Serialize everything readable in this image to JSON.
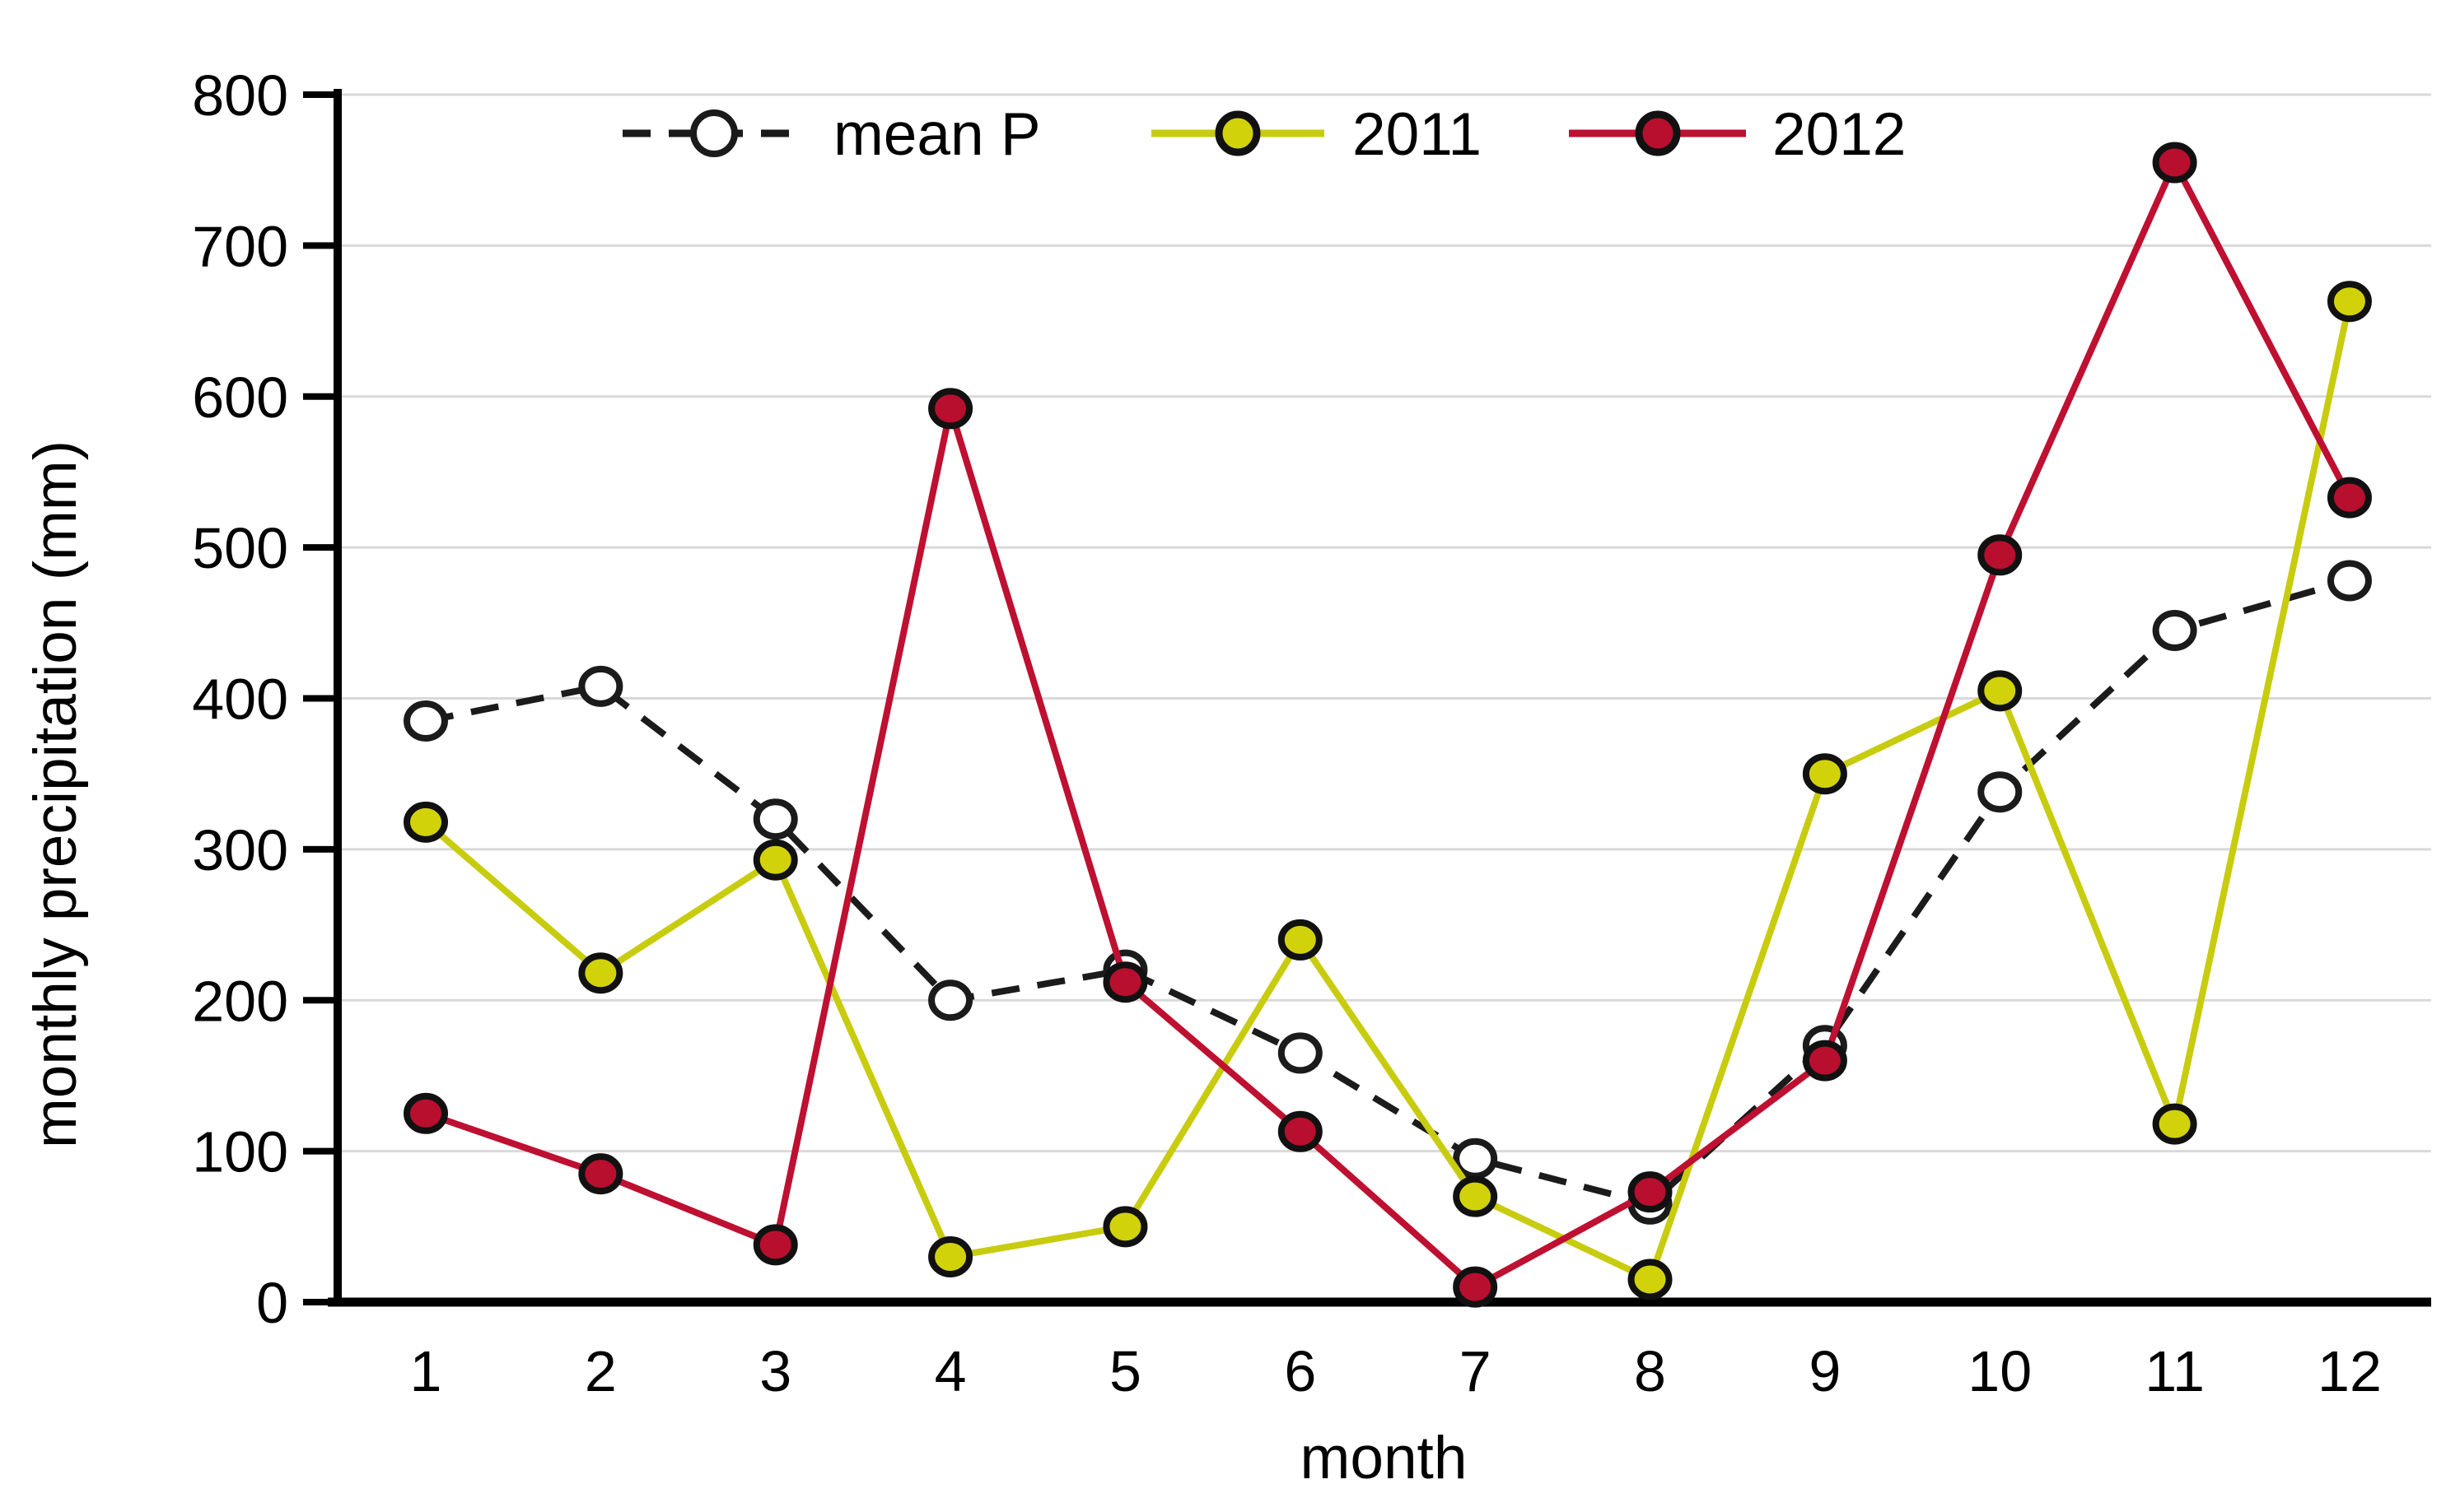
{
  "chart_data": {
    "type": "line",
    "title": "",
    "xlabel": "month",
    "ylabel": "monthly precipitation (mm)",
    "x": [
      1,
      2,
      3,
      4,
      5,
      6,
      7,
      8,
      9,
      10,
      11,
      12
    ],
    "xlim": [
      0.5,
      12.5
    ],
    "ylim": [
      0,
      800
    ],
    "yticks": [
      0,
      100,
      200,
      300,
      400,
      500,
      600,
      700,
      800
    ],
    "grid": "horizontal gridlines every 100 mm, light gray",
    "legend_position": "top-center, horizontal, no border",
    "series": [
      {
        "name": "mean P",
        "line_style": "dashed",
        "color": "#1b1b1b",
        "marker": "open-circle",
        "marker_fill": "#ffffff",
        "marker_stroke": "#1b1b1b",
        "values": [
          385,
          408,
          320,
          200,
          220,
          165,
          95,
          65,
          170,
          338,
          445,
          478
        ]
      },
      {
        "name": "2011",
        "line_style": "solid",
        "color": "#c8cc0e",
        "marker": "filled-circle",
        "marker_fill": "#d2d20a",
        "marker_stroke": "#111111",
        "values": [
          318,
          218,
          293,
          30,
          50,
          240,
          70,
          15,
          350,
          405,
          118,
          663
        ]
      },
      {
        "name": "2012",
        "line_style": "solid",
        "color": "#be1031",
        "marker": "filled-circle",
        "marker_fill": "#b80f2f",
        "marker_stroke": "#111111",
        "values": [
          125,
          85,
          38,
          592,
          212,
          113,
          10,
          73,
          160,
          495,
          755,
          533
        ]
      }
    ],
    "axis_color": "#000000",
    "gridline_color": "#d9d9d9"
  }
}
